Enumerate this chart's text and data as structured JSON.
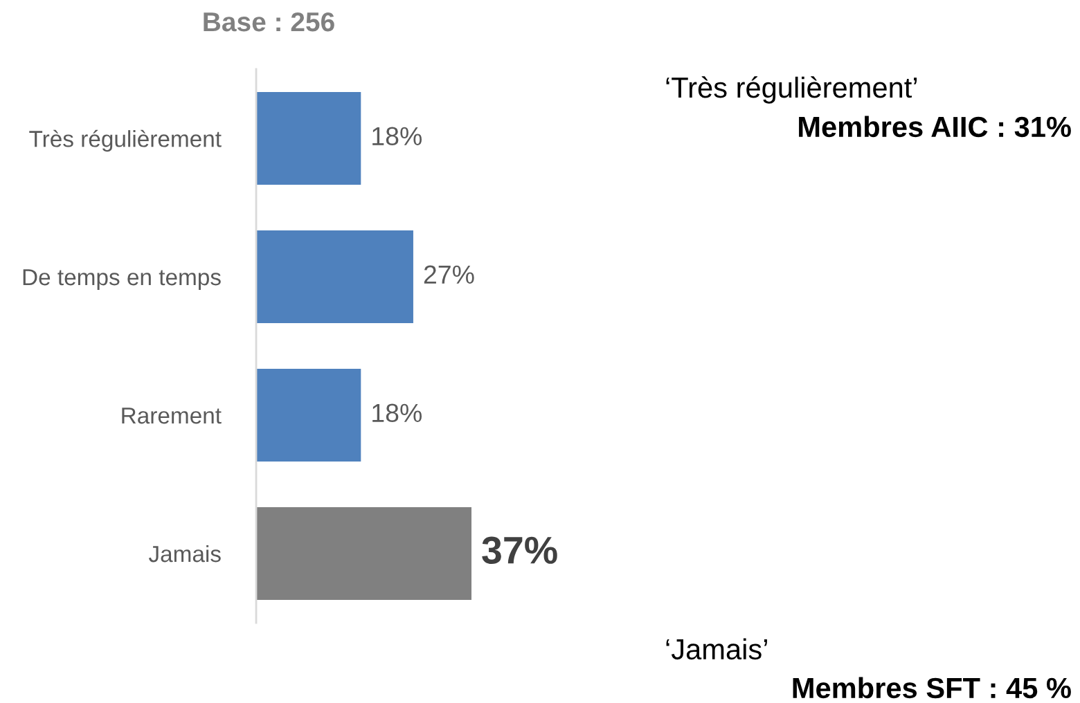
{
  "chart_data": {
    "type": "bar",
    "orientation": "horizontal",
    "title": "Base : 256",
    "categories": [
      "Très régulièrement",
      "De temps en temps",
      "Rarement",
      "Jamais"
    ],
    "values": [
      18,
      27,
      18,
      37
    ],
    "colors": [
      "#4f81bd",
      "#4f81bd",
      "#4f81bd",
      "#808080"
    ],
    "value_labels": [
      "18%",
      "27%",
      "18%",
      "37%"
    ],
    "annotations": [
      "‘Très régulièrement’",
      "Membres AIIC : 31%",
      "‘Jamais’",
      "Membres SFT : 45 %"
    ]
  }
}
